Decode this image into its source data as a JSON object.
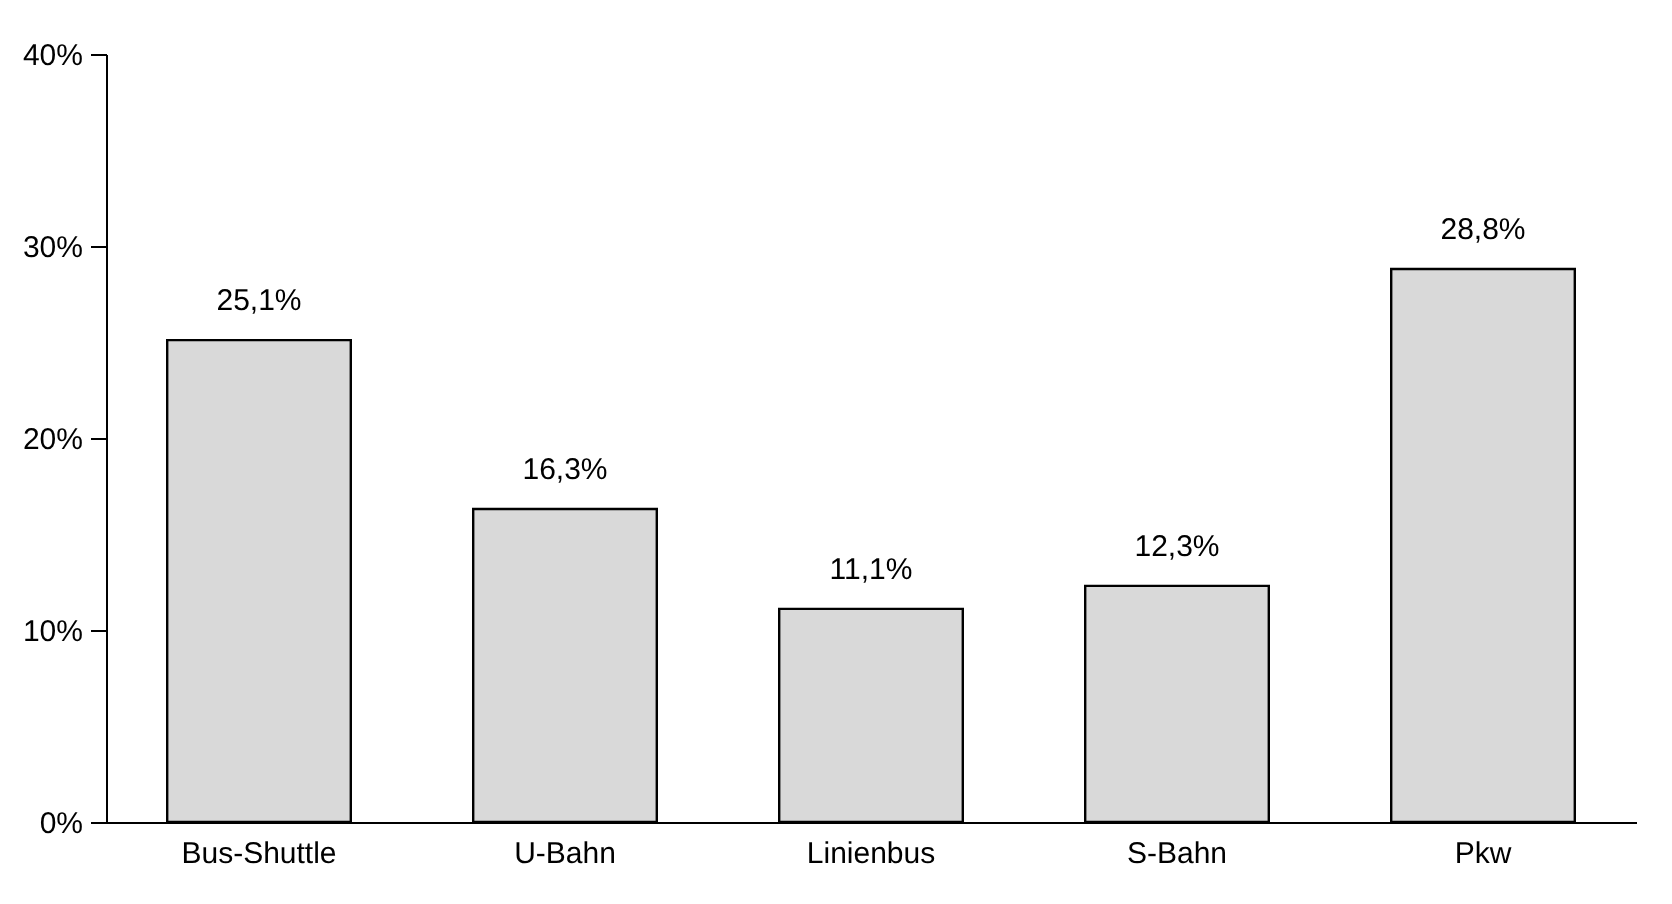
{
  "chart_data": {
    "type": "bar",
    "categories": [
      "Bus-Shuttle",
      "U-Bahn",
      "Linienbus",
      "S-Bahn",
      "Pkw"
    ],
    "values": [
      25.1,
      16.3,
      11.1,
      12.3,
      28.8
    ],
    "value_labels": [
      "25,1%",
      "16,3%",
      "11,1%",
      "12,3%",
      "28,8%"
    ],
    "color": "#d9d9d9",
    "ylim": [
      0,
      40
    ],
    "yticks": [
      {
        "value": 0,
        "label": "0%"
      },
      {
        "value": 10,
        "label": "10%"
      },
      {
        "value": 20,
        "label": "20%"
      },
      {
        "value": 30,
        "label": "30%"
      },
      {
        "value": 40,
        "label": "40%"
      }
    ],
    "grid": false
  }
}
